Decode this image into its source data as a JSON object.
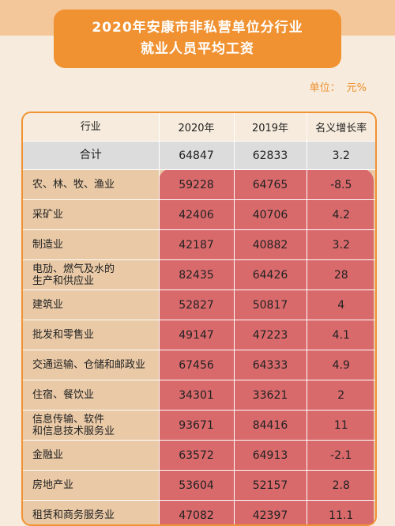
{
  "title": {
    "line1": "2020年安康市非私营单位分行业",
    "line2": "就业人员平均工资"
  },
  "unit": {
    "label": "单位：",
    "value": "元%"
  },
  "table": {
    "headers": [
      "行业",
      "2020年",
      "2019年",
      "名义增长率"
    ],
    "total": {
      "name": "合计",
      "y2020": "64847",
      "y2019": "62833",
      "growth": "3.2"
    },
    "rows": [
      {
        "name": "农、林、牧、渔业",
        "y2020": "59228",
        "y2019": "64765",
        "growth": "-8.5"
      },
      {
        "name": "采矿业",
        "y2020": "42406",
        "y2019": "40706",
        "growth": "4.2"
      },
      {
        "name": "制造业",
        "y2020": "42187",
        "y2019": "40882",
        "growth": "3.2"
      },
      {
        "name": "电劢、燃气及水的",
        "name2": "生产和供应业",
        "y2020": "82435",
        "y2019": "64426",
        "growth": "28"
      },
      {
        "name": "建筑业",
        "y2020": "52827",
        "y2019": "50817",
        "growth": "4"
      },
      {
        "name": "批发和零售业",
        "y2020": "49147",
        "y2019": "47223",
        "growth": "4.1"
      },
      {
        "name": "交通运输、仓储和邮政业",
        "y2020": "67456",
        "y2019": "64333",
        "growth": "4.9"
      },
      {
        "name": "住宿、餐饮业",
        "y2020": "34301",
        "y2019": "33621",
        "growth": "2"
      },
      {
        "name": "信息传输、软件",
        "name2": "和信息技术服务业",
        "y2020": "93671",
        "y2019": "84416",
        "growth": "11"
      },
      {
        "name": "金融业",
        "y2020": "63572",
        "y2019": "64913",
        "growth": "-2.1"
      },
      {
        "name": "房地产业",
        "y2020": "53604",
        "y2019": "52157",
        "growth": "2.8"
      },
      {
        "name": "租赁和商务服务业",
        "y2020": "47082",
        "y2019": "42397",
        "growth": "11.1"
      }
    ]
  }
}
